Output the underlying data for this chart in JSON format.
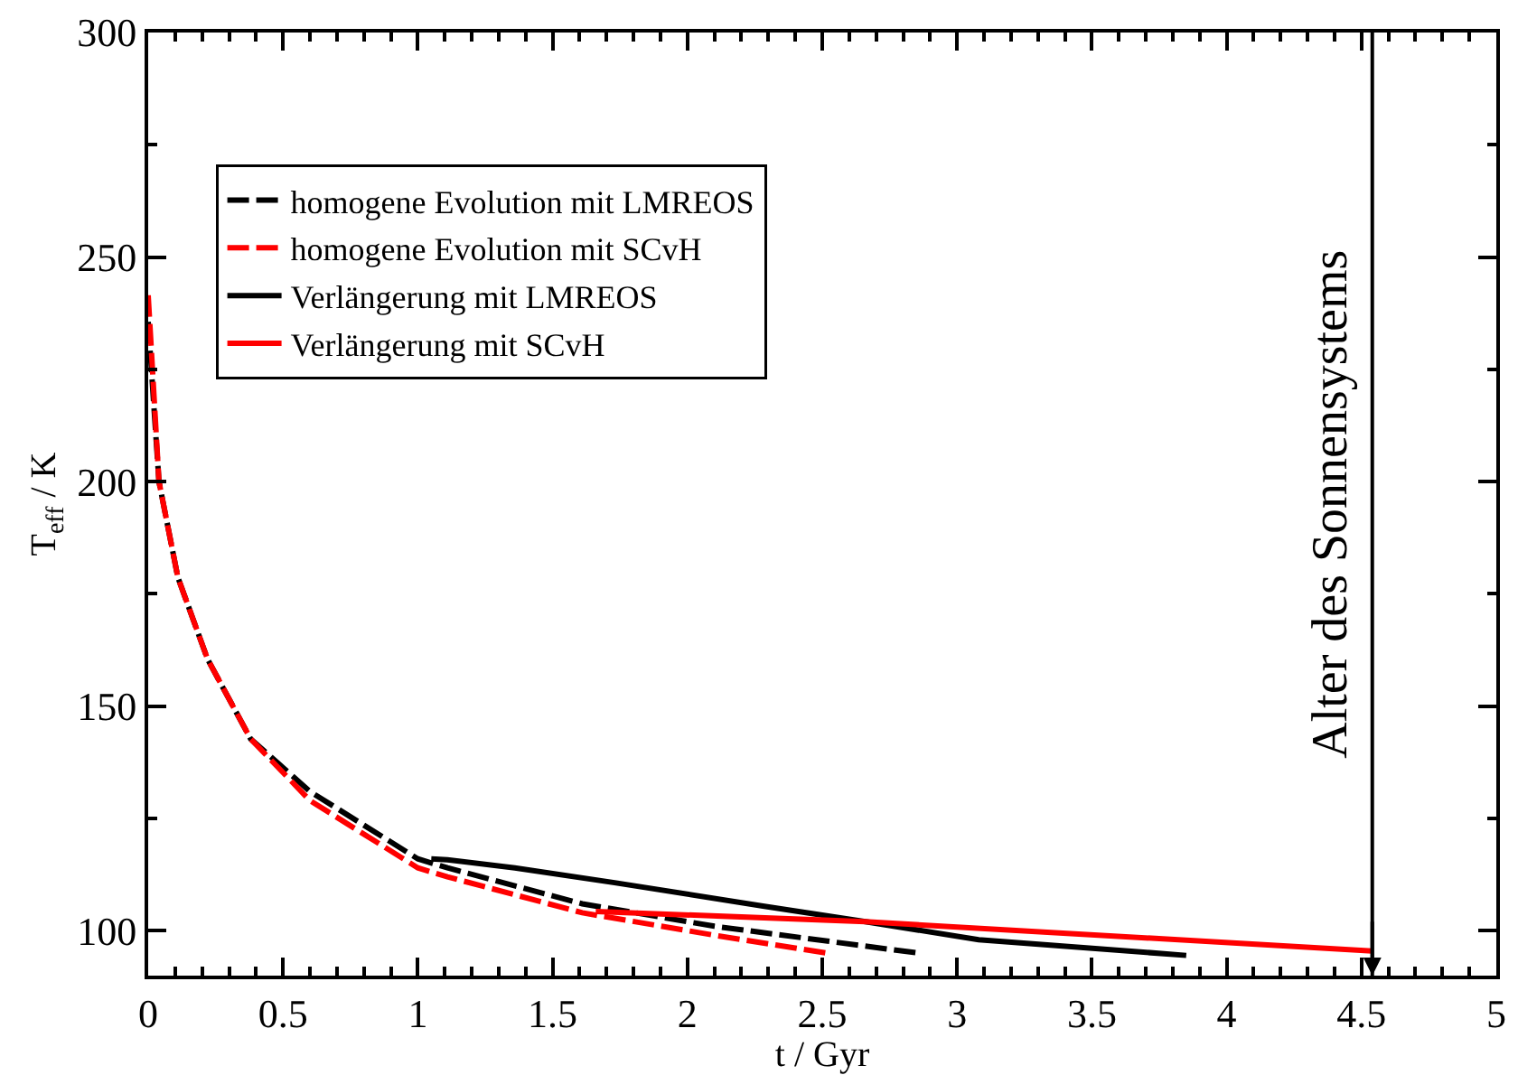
{
  "chart_data": {
    "type": "line",
    "xlabel": "t / Gyr",
    "ylabel": "T$_{eff}$ / K",
    "xlim": [
      0,
      5
    ],
    "xticks": [
      0,
      0.5,
      1,
      1.5,
      2,
      2.5,
      3,
      3.5,
      4,
      4.5,
      5
    ],
    "ylim": [
      90,
      300
    ],
    "yticks": [
      100,
      150,
      200,
      250,
      300
    ],
    "legend": "top left",
    "marker": "none",
    "series": [
      {
        "name": "homogene Evolution mit LMREOS",
        "color": "#000000",
        "line_style": "dashed",
        "x": [
          0.0,
          0.04,
          0.11,
          0.22,
          0.38,
          0.6,
          1.0,
          1.11,
          1.61,
          2.1,
          2.86
        ],
        "values": [
          235.6,
          200,
          178.7,
          160.5,
          142.7,
          131,
          116,
          114,
          106,
          101,
          95
        ]
      },
      {
        "name": "homogene Evolution mit SCvH",
        "color": "#ff0000",
        "line_style": "dashed",
        "x": [
          0.0,
          0.04,
          0.11,
          0.22,
          0.38,
          0.6,
          1.0,
          1.11,
          1.61,
          2.1,
          2.52
        ],
        "values": [
          241.5,
          200,
          178.7,
          160.5,
          142.7,
          129,
          114,
          112,
          104,
          99,
          95
        ]
      },
      {
        "name": "Verlängerung mit LMREOS",
        "color": "#000000",
        "line_style": "solid",
        "x": [
          1.05,
          1.11,
          1.36,
          1.73,
          2.28,
          2.66,
          3.08,
          3.85
        ],
        "values": [
          116,
          115.8,
          114,
          110.7,
          105.5,
          102,
          98,
          94.5
        ]
      },
      {
        "name": "Verlängerung mit SCvH",
        "color": "#ff0000",
        "line_style": "solid",
        "x": [
          1.66,
          2.66,
          4.54
        ],
        "values": [
          104.3,
          102,
          95.5
        ]
      }
    ],
    "ref_lines": [
      {
        "axis": "x",
        "value": 4.54,
        "label": "Alter des Sonnensystems",
        "color": "#000000",
        "line_style": "solid"
      }
    ]
  }
}
